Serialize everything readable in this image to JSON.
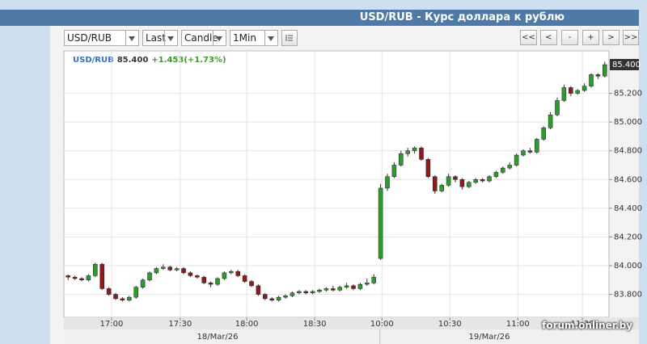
{
  "header": {
    "title": "USD/RUB - Курс доллара к рублю"
  },
  "toolbar": {
    "selects": [
      "USD/RUB",
      "Last",
      "Candle",
      "1Min"
    ],
    "nav_buttons": [
      "<<",
      "<",
      "-",
      "+",
      ">",
      ">>"
    ]
  },
  "watermark": "forum.onliner.by",
  "chart_data": {
    "type": "candlestick",
    "legend": {
      "symbol": "USD/RUB",
      "price": "85.400",
      "change": "+1.453(+1.73%)"
    },
    "x": [
      0,
      1,
      2,
      3,
      4,
      5,
      6,
      7,
      8,
      9,
      10,
      11,
      12,
      13,
      14,
      15,
      16,
      17,
      18,
      19,
      20,
      21,
      22,
      23,
      24,
      25,
      26,
      27,
      28,
      29,
      30,
      31,
      32,
      33,
      34,
      35,
      36,
      37,
      38,
      39,
      40,
      41,
      42,
      43,
      44,
      45,
      46,
      47,
      48,
      49,
      50,
      51,
      52,
      53,
      54,
      55,
      56,
      57,
      58,
      59,
      60,
      61,
      62,
      63,
      64,
      65,
      66,
      67,
      68,
      69,
      70,
      71,
      72,
      73,
      74,
      75,
      76,
      77,
      78,
      79
    ],
    "series": [
      {
        "name": "USD/RUB",
        "up_color": "#2f9a2f",
        "down_color": "#8c1c1c",
        "open": [
          83.93,
          83.92,
          83.91,
          83.9,
          83.93,
          84.01,
          83.84,
          83.8,
          83.77,
          83.76,
          83.78,
          83.85,
          83.9,
          83.95,
          83.98,
          83.99,
          83.97,
          83.98,
          83.95,
          83.93,
          83.92,
          83.88,
          83.87,
          83.91,
          83.95,
          83.96,
          83.93,
          83.89,
          83.86,
          83.8,
          83.77,
          83.76,
          83.78,
          83.79,
          83.81,
          83.82,
          83.81,
          83.82,
          83.83,
          83.84,
          83.83,
          83.85,
          83.86,
          83.84,
          83.87,
          83.88,
          84.05,
          84.54,
          84.62,
          84.7,
          84.78,
          84.8,
          84.82,
          84.74,
          84.62,
          84.52,
          84.56,
          84.62,
          84.6,
          84.55,
          84.58,
          84.6,
          84.59,
          84.62,
          84.65,
          84.68,
          84.7,
          84.77,
          84.8,
          84.79,
          84.88,
          84.96,
          85.05,
          85.15,
          85.24,
          85.2,
          85.22,
          85.25,
          85.33,
          85.32
        ],
        "high": [
          83.94,
          83.93,
          83.92,
          83.94,
          84.02,
          84.02,
          83.85,
          83.81,
          83.78,
          83.79,
          83.86,
          83.91,
          83.96,
          83.99,
          84.01,
          84.0,
          83.99,
          83.99,
          83.96,
          83.94,
          83.93,
          83.89,
          83.92,
          83.96,
          83.97,
          83.97,
          83.94,
          83.9,
          83.87,
          83.81,
          83.78,
          83.79,
          83.8,
          83.82,
          83.83,
          83.83,
          83.83,
          83.84,
          83.85,
          83.86,
          83.86,
          83.88,
          83.87,
          83.88,
          83.91,
          83.94,
          84.57,
          84.64,
          84.72,
          84.8,
          84.82,
          84.83,
          84.83,
          84.75,
          84.63,
          84.57,
          84.64,
          84.63,
          84.61,
          84.59,
          84.61,
          84.61,
          84.63,
          84.66,
          84.69,
          84.72,
          84.78,
          84.81,
          84.82,
          84.89,
          84.97,
          85.07,
          85.17,
          85.26,
          85.25,
          85.23,
          85.27,
          85.34,
          85.34,
          85.42
        ],
        "low": [
          83.9,
          83.9,
          83.89,
          83.89,
          83.92,
          83.83,
          83.79,
          83.76,
          83.75,
          83.75,
          83.77,
          83.84,
          83.89,
          83.94,
          83.97,
          83.96,
          83.96,
          83.94,
          83.92,
          83.91,
          83.87,
          83.85,
          83.86,
          83.9,
          83.94,
          83.92,
          83.88,
          83.85,
          83.79,
          83.76,
          83.75,
          83.75,
          83.77,
          83.78,
          83.8,
          83.8,
          83.8,
          83.81,
          83.82,
          83.82,
          83.82,
          83.84,
          83.83,
          83.83,
          83.86,
          83.87,
          84.04,
          84.52,
          84.61,
          84.69,
          84.76,
          84.78,
          84.73,
          84.61,
          84.5,
          84.51,
          84.55,
          84.58,
          84.53,
          84.54,
          84.57,
          84.58,
          84.58,
          84.61,
          84.64,
          84.67,
          84.69,
          84.76,
          84.78,
          84.78,
          84.87,
          84.95,
          85.04,
          85.14,
          85.18,
          85.19,
          85.21,
          85.24,
          85.3,
          85.31
        ],
        "close": [
          83.92,
          83.91,
          83.9,
          83.93,
          84.01,
          83.84,
          83.8,
          83.77,
          83.76,
          83.78,
          83.85,
          83.9,
          83.95,
          83.98,
          83.99,
          83.97,
          83.98,
          83.95,
          83.93,
          83.92,
          83.88,
          83.87,
          83.91,
          83.95,
          83.96,
          83.93,
          83.89,
          83.86,
          83.8,
          83.77,
          83.76,
          83.78,
          83.79,
          83.81,
          83.82,
          83.81,
          83.82,
          83.83,
          83.84,
          83.83,
          83.85,
          83.86,
          83.84,
          83.87,
          83.88,
          83.92,
          84.54,
          84.62,
          84.7,
          84.78,
          84.8,
          84.82,
          84.74,
          84.62,
          84.52,
          84.56,
          84.62,
          84.6,
          84.55,
          84.58,
          84.6,
          84.59,
          84.62,
          84.65,
          84.68,
          84.7,
          84.77,
          84.8,
          84.79,
          84.88,
          84.96,
          85.05,
          85.15,
          85.24,
          85.2,
          85.22,
          85.25,
          85.33,
          85.32,
          85.4
        ]
      }
    ],
    "xlim": [
      -0.5,
      79.5
    ],
    "ylim": [
      83.64,
      85.49
    ],
    "xticks": [
      {
        "value": 6.4,
        "label": "17:00"
      },
      {
        "value": 16.5,
        "label": "17:30"
      },
      {
        "value": 26.3,
        "label": "18:00"
      },
      {
        "value": 36.3,
        "label": "18:30"
      },
      {
        "value": 46.2,
        "label": "10:00"
      },
      {
        "value": 56.2,
        "label": "10:30"
      },
      {
        "value": 66.2,
        "label": "11:00"
      },
      {
        "value": 75.7,
        "label": "11:30"
      }
    ],
    "yticks": [
      {
        "value": 83.8,
        "label": "83.800"
      },
      {
        "value": 84.0,
        "label": "84.000"
      },
      {
        "value": 84.2,
        "label": "84.200"
      },
      {
        "value": 84.4,
        "label": "84.400"
      },
      {
        "value": 84.6,
        "label": "84.600"
      },
      {
        "value": 84.8,
        "label": "84.800"
      },
      {
        "value": 85.0,
        "label": "85.000"
      },
      {
        "value": 85.2,
        "label": "85.200"
      }
    ],
    "last_price": {
      "value": 85.4,
      "label": "85.400"
    },
    "dates": [
      {
        "value": 22,
        "label": "18/Mar/26"
      },
      {
        "value": 62,
        "label": "19/Mar/26"
      }
    ],
    "date_separator": 45.9,
    "grid": true
  }
}
